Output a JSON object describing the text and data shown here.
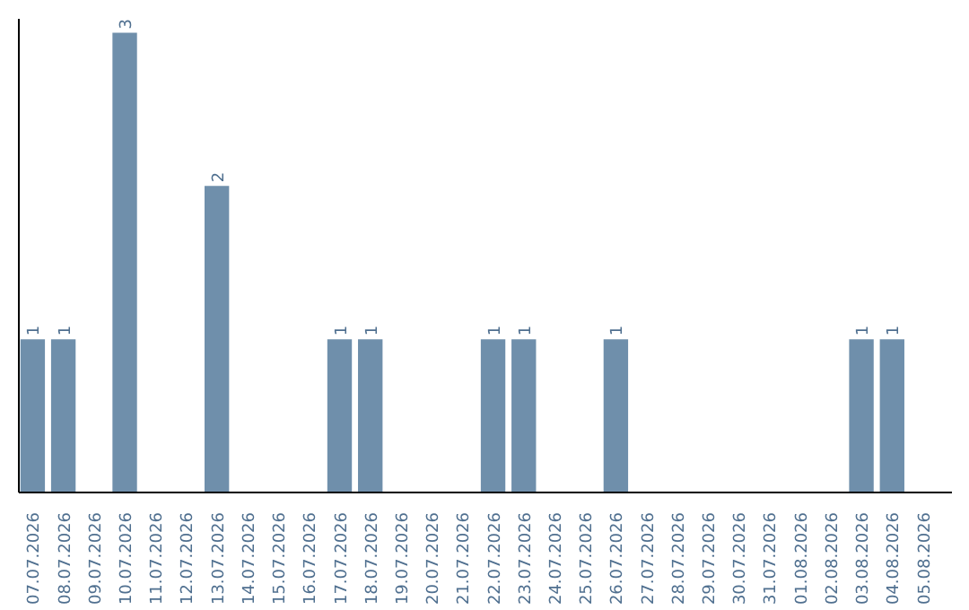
{
  "chart_data": {
    "type": "bar",
    "categories": [
      "07.07.2026",
      "08.07.2026",
      "09.07.2026",
      "10.07.2026",
      "11.07.2026",
      "12.07.2026",
      "13.07.2026",
      "14.07.2026",
      "15.07.2026",
      "16.07.2026",
      "17.07.2026",
      "18.07.2026",
      "19.07.2026",
      "20.07.2026",
      "21.07.2026",
      "22.07.2026",
      "23.07.2026",
      "24.07.2026",
      "25.07.2026",
      "26.07.2026",
      "27.07.2026",
      "28.07.2026",
      "29.07.2026",
      "30.07.2026",
      "31.07.2026",
      "01.08.2026",
      "02.08.2026",
      "03.08.2026",
      "04.08.2026",
      "05.08.2026"
    ],
    "values": [
      1,
      1,
      0,
      3,
      0,
      0,
      2,
      0,
      0,
      0,
      1,
      1,
      0,
      0,
      0,
      1,
      1,
      0,
      0,
      1,
      0,
      0,
      0,
      0,
      0,
      0,
      0,
      1,
      1,
      0
    ],
    "value_labels": [
      "1",
      "1",
      null,
      "3",
      null,
      null,
      "2",
      null,
      null,
      null,
      "1",
      "1",
      null,
      null,
      null,
      "1",
      "1",
      null,
      null,
      "1",
      null,
      null,
      null,
      null,
      null,
      null,
      null,
      "1",
      "1",
      null
    ],
    "color": "#6f8fab"
  }
}
